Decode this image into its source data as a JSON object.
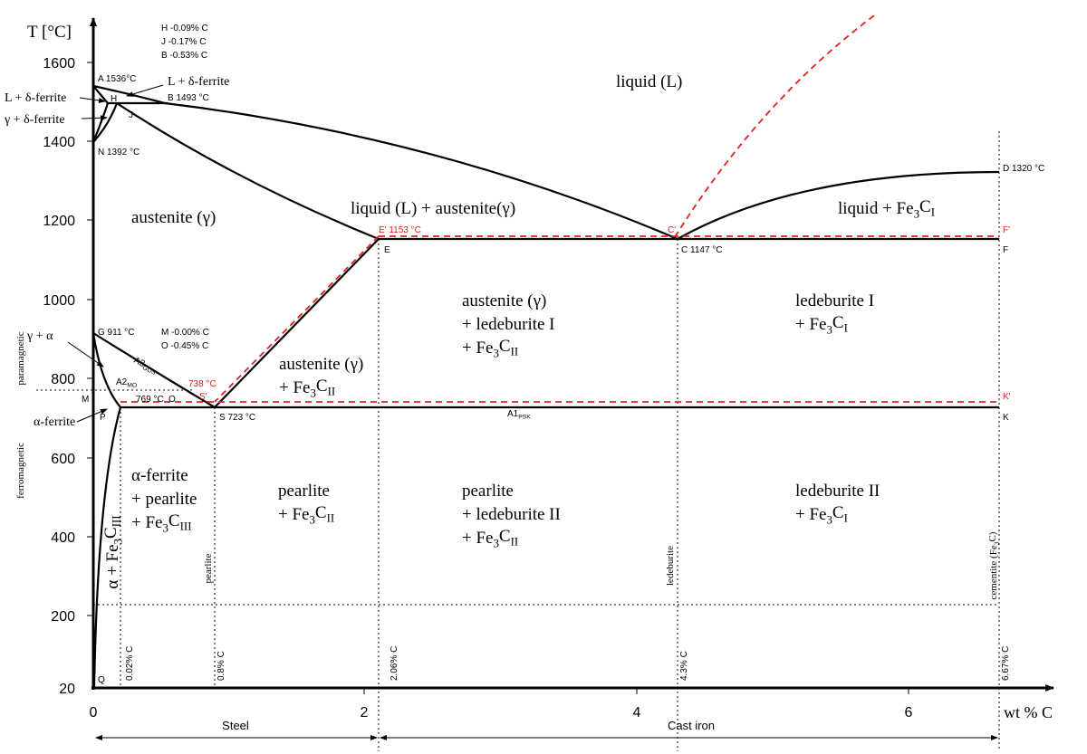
{
  "axes": {
    "y_title": "T [°C]",
    "y_ticks": [
      "1600",
      "1400",
      "1200",
      "1000",
      "800",
      "600",
      "400",
      "200",
      "20"
    ],
    "x_ticks": [
      "0",
      "2",
      "4",
      "6"
    ],
    "x_title": "wt % C",
    "ranges": [
      "Steel",
      "Cast iron"
    ]
  },
  "notes": [
    "H -0.09% C",
    "J -0.17% C",
    "B -0.53% C",
    "M -0.00% C",
    "O -0.45% C"
  ],
  "points": [
    "A 1536°C",
    "H",
    "B 1493 °C",
    "J",
    "N 1392 °C",
    "D 1320 °C",
    "E' 1153 °C",
    "C'",
    "F'",
    "E",
    "C 1147 °C",
    "F",
    "G 911 °C",
    "M",
    "738 °C",
    "S'",
    "769 °C",
    "O",
    "K'",
    "P",
    "S 723 °C",
    "K",
    "Q"
  ],
  "line_labels": [
    [
      "A3",
      "GOS"
    ],
    [
      "A2",
      "MO"
    ],
    [
      "A1",
      "PSK"
    ]
  ],
  "phase_labels": [
    "L + δ-ferrite",
    "L + δ-ferrite",
    "γ + δ-ferrite",
    "γ + α",
    "α-ferrite"
  ],
  "magnetism": [
    "paramagnetic",
    "ferromagnetic"
  ],
  "compositions": [
    "0.02% C",
    "0.8% C",
    "2.06% C",
    "4.3% C",
    "6.67% C"
  ],
  "alloys": [
    [
      "pearlite"
    ],
    [
      "ledeburite"
    ],
    [
      "cementite (Fe",
      "3",
      "C)"
    ]
  ],
  "regions": [
    [
      [
        "liquid (L)"
      ]
    ],
    [
      [
        "austenite (γ)"
      ]
    ],
    [
      [
        "liquid (L) + austenite(γ)"
      ]
    ],
    [
      [
        "liquid + Fe",
        "3",
        "C",
        "I"
      ]
    ],
    [
      [
        "austenite (γ)"
      ],
      [
        "+ ledeburite I"
      ],
      [
        "+ Fe",
        "3",
        "C",
        "II"
      ]
    ],
    [
      [
        "ledeburite I"
      ],
      [
        "+ Fe",
        "3",
        "C",
        "I"
      ]
    ],
    [
      [
        "austenite (γ)"
      ],
      [
        "+ Fe",
        "3",
        "C",
        "II"
      ]
    ],
    [
      [
        "α-ferrite"
      ],
      [
        "+ pearlite"
      ],
      [
        "+ Fe",
        "3",
        "C",
        "III"
      ]
    ],
    [
      [
        "pearlite"
      ],
      [
        "+ Fe",
        "3",
        "C",
        "II"
      ]
    ],
    [
      [
        "pearlite"
      ],
      [
        "+ ledeburite II"
      ],
      [
        "+ Fe",
        "3",
        "C",
        "II"
      ]
    ],
    [
      [
        "ledeburite II"
      ],
      [
        "+ Fe",
        "3",
        "C",
        "I"
      ]
    ],
    [
      [
        "α + Fe",
        "3",
        "C",
        "III"
      ]
    ]
  ]
}
